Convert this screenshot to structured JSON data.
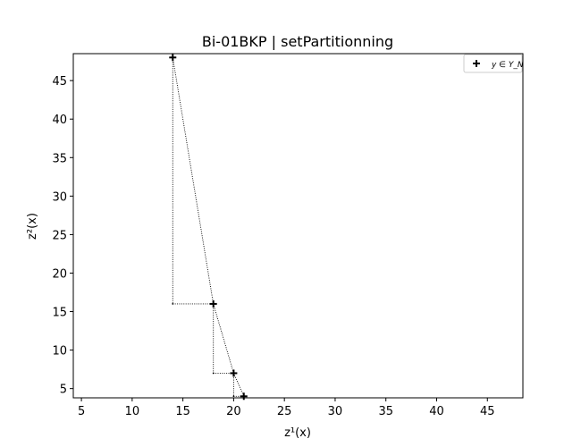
{
  "chart_data": {
    "type": "scatter",
    "title": "Bi-01BKP | setPartitionning",
    "xlabel": "z¹(x)",
    "ylabel": "z²(x)",
    "xlim": [
      4.2,
      48.5
    ],
    "ylim": [
      3.8,
      48.5
    ],
    "xticks": [
      5,
      10,
      15,
      20,
      25,
      30,
      35,
      40,
      45
    ],
    "yticks": [
      5,
      10,
      15,
      20,
      25,
      30,
      35,
      40,
      45
    ],
    "grid": false,
    "legend_position": "top-right",
    "series": [
      {
        "name": "y ∈ Y_N",
        "marker": "plus",
        "color": "#000000",
        "points": [
          {
            "x": 14,
            "y": 48
          },
          {
            "x": 18,
            "y": 16
          },
          {
            "x": 20,
            "y": 7
          },
          {
            "x": 21,
            "y": 4
          }
        ]
      }
    ],
    "staircase": {
      "style": "dotted",
      "color": "#000000",
      "points": [
        {
          "x": 14,
          "y": 48
        },
        {
          "x": 14,
          "y": 16
        },
        {
          "x": 18,
          "y": 16
        },
        {
          "x": 18,
          "y": 7
        },
        {
          "x": 20,
          "y": 7
        },
        {
          "x": 20,
          "y": 4
        },
        {
          "x": 21,
          "y": 4
        }
      ]
    },
    "diagonal_path": {
      "style": "dotted",
      "color": "#000000",
      "points": [
        {
          "x": 14,
          "y": 48
        },
        {
          "x": 18,
          "y": 16
        },
        {
          "x": 20,
          "y": 7
        },
        {
          "x": 21,
          "y": 4
        }
      ]
    }
  }
}
